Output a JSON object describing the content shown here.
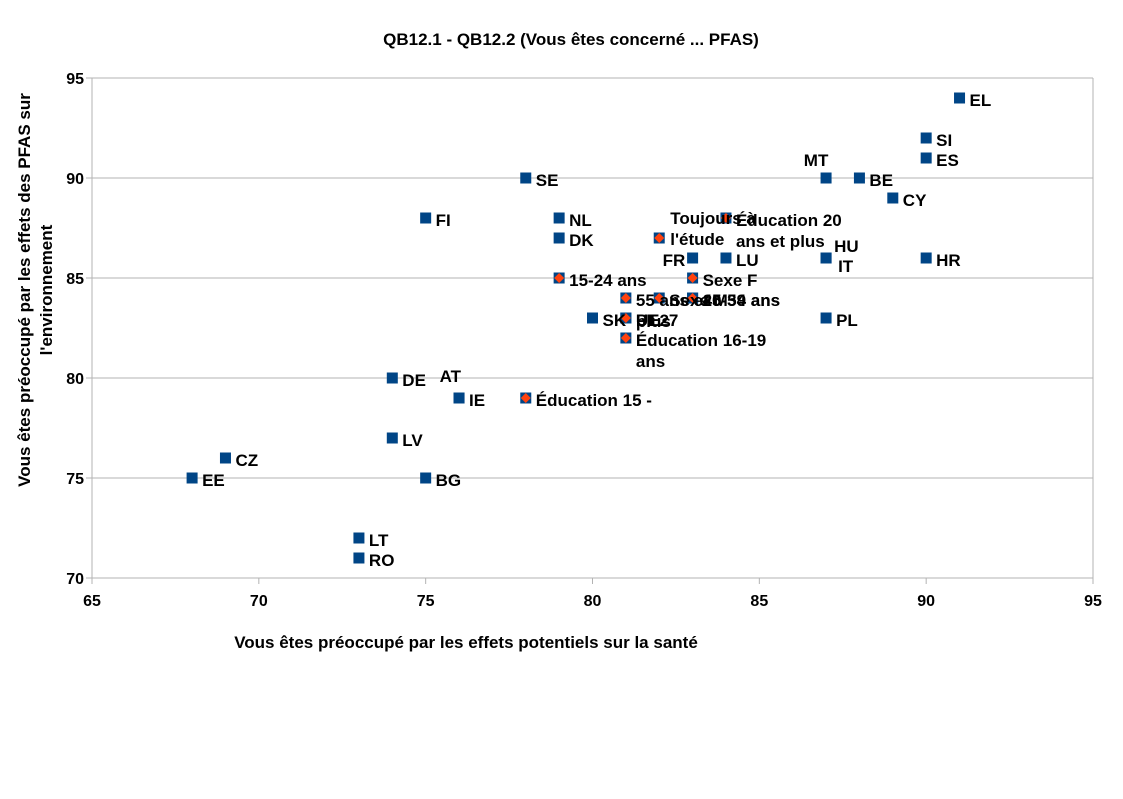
{
  "chart_data": {
    "type": "scatter",
    "title": "QB12.1 - QB12.2 (Vous êtes concerné ... PFAS)",
    "xlabel": "Vous êtes préoccupé par les effets potentiels sur la santé",
    "ylabel_lines": [
      "Vous êtes préoccupé par les effets des PFAS sur",
      "l'environnement"
    ],
    "xlim": [
      65,
      95
    ],
    "ylim": [
      70,
      95
    ],
    "xticks": [
      65,
      70,
      75,
      80,
      85,
      90,
      95
    ],
    "yticks": [
      70,
      75,
      80,
      85,
      90,
      95
    ],
    "grid": "horizontal",
    "series": [
      {
        "marker_color": "#004586",
        "marker_shape": "square",
        "points": [
          {
            "label": "EL",
            "x": 91,
            "y": 94
          },
          {
            "label": "SI",
            "x": 90,
            "y": 92
          },
          {
            "label": "ES",
            "x": 90,
            "y": 91
          },
          {
            "label": "SE",
            "x": 78,
            "y": 90
          },
          {
            "label": "MT",
            "x": 87,
            "y": 90
          },
          {
            "label": "BE",
            "x": 88,
            "y": 90
          },
          {
            "label": "CY",
            "x": 89,
            "y": 89
          },
          {
            "label": "FI",
            "x": 75,
            "y": 88
          },
          {
            "label": "NL",
            "x": 79,
            "y": 88
          },
          {
            "label": "DK",
            "x": 79,
            "y": 87
          },
          {
            "label": "FR",
            "x": 83,
            "y": 86
          },
          {
            "label": "LU",
            "x": 84,
            "y": 86
          },
          {
            "label": "HU",
            "x": 87,
            "y": 86
          },
          {
            "label": "IT",
            "x": 87,
            "y": 86
          },
          {
            "label": "HR",
            "x": 90,
            "y": 86
          },
          {
            "label": "SK",
            "x": 80,
            "y": 83
          },
          {
            "label": "PT",
            "x": 81,
            "y": 83
          },
          {
            "label": "PL",
            "x": 87,
            "y": 83
          },
          {
            "label": "DE",
            "x": 74,
            "y": 80
          },
          {
            "label": "AT",
            "x": 76,
            "y": 79
          },
          {
            "label": "IE",
            "x": 76,
            "y": 79
          },
          {
            "label": "LV",
            "x": 74,
            "y": 77
          },
          {
            "label": "CZ",
            "x": 69,
            "y": 76
          },
          {
            "label": "EE",
            "x": 68,
            "y": 75
          },
          {
            "label": "BG",
            "x": 75,
            "y": 75
          },
          {
            "label": "LT",
            "x": 73,
            "y": 72
          },
          {
            "label": "RO",
            "x": 73,
            "y": 71
          }
        ]
      },
      {
        "marker_color": "#ff420e",
        "marker_border": "#004586",
        "marker_shape": "diamond",
        "points": [
          {
            "label": "Éducation 20 ans et plus",
            "x": 84,
            "y": 88
          },
          {
            "label": "Toujours à l'étude",
            "x": 82,
            "y": 87
          },
          {
            "label": "15-24 ans",
            "x": 79,
            "y": 85
          },
          {
            "label": "Sexe F",
            "x": 83,
            "y": 85
          },
          {
            "label": "55 ans et plus",
            "x": 81,
            "y": 84
          },
          {
            "label": "Sexe M",
            "x": 82,
            "y": 84
          },
          {
            "label": "25-39 ans",
            "x": 83,
            "y": 84
          },
          {
            "label": "40-54 ans",
            "x": 83,
            "y": 84
          },
          {
            "label": "UE27",
            "x": 81,
            "y": 83
          },
          {
            "label": "Éducation 16-19 ans",
            "x": 81,
            "y": 82
          },
          {
            "label": "Éducation 15 -",
            "x": 78,
            "y": 79
          }
        ]
      }
    ]
  }
}
